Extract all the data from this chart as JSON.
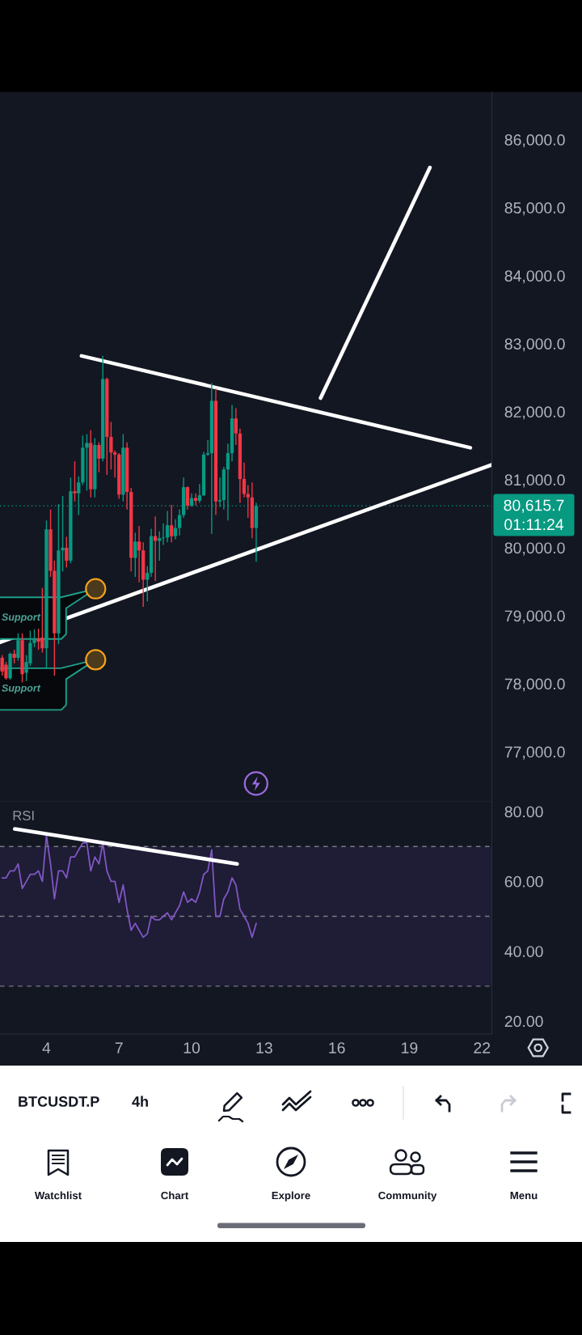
{
  "chart_data": [
    {
      "type": "candlestick",
      "x": [
        2.17,
        2.33,
        2.5,
        2.67,
        2.83,
        3.0,
        3.17,
        3.33,
        3.5,
        3.67,
        3.83,
        4.0,
        4.17,
        4.33,
        4.5,
        4.67,
        4.83,
        5.0,
        5.17,
        5.33,
        5.5,
        5.67,
        5.83,
        6.0,
        6.17,
        6.33,
        6.5,
        6.67,
        6.83,
        7.0,
        7.17,
        7.33,
        7.5,
        7.67,
        7.83,
        8.0,
        8.17,
        8.33,
        8.5,
        8.67,
        8.83,
        9.0,
        9.17,
        9.33,
        9.5,
        9.67,
        9.83,
        10.0,
        10.17,
        10.33,
        10.5,
        10.67,
        10.83,
        11.0,
        11.17,
        11.33,
        11.5,
        11.67,
        11.83,
        12.0,
        12.17,
        12.33,
        12.5,
        12.67
      ],
      "ohlc": [
        [
          78380,
          78420,
          78120,
          78180
        ],
        [
          78280,
          78320,
          78060,
          78080
        ],
        [
          78080,
          78460,
          78060,
          78440
        ],
        [
          78440,
          78500,
          78300,
          78380
        ],
        [
          78380,
          78740,
          78340,
          78640
        ],
        [
          78640,
          78740,
          78020,
          78140
        ],
        [
          78160,
          78420,
          78040,
          78320
        ],
        [
          78300,
          78780,
          78260,
          78600
        ],
        [
          78600,
          78800,
          78540,
          78660
        ],
        [
          78660,
          78810,
          78500,
          78620
        ],
        [
          78680,
          79410,
          78460,
          78520
        ],
        [
          78520,
          80400,
          78220,
          80270
        ],
        [
          80270,
          80560,
          79570,
          79660
        ],
        [
          79660,
          79810,
          78120,
          78740
        ],
        [
          78740,
          80640,
          78580,
          79960
        ],
        [
          79960,
          80760,
          79650,
          80000
        ],
        [
          80000,
          80160,
          79710,
          79810
        ],
        [
          79810,
          81030,
          79770,
          80830
        ],
        [
          80830,
          81270,
          80680,
          80800
        ],
        [
          80800,
          81050,
          80480,
          80960
        ],
        [
          80960,
          81650,
          80920,
          81470
        ],
        [
          81470,
          81670,
          80840,
          81540
        ],
        [
          81540,
          81730,
          80740,
          80860
        ],
        [
          80860,
          81610,
          80740,
          81510
        ],
        [
          81510,
          81550,
          81110,
          81310
        ],
        [
          81310,
          82820,
          81270,
          82480
        ],
        [
          82480,
          82500,
          81070,
          81630
        ],
        [
          81630,
          81850,
          81150,
          81400
        ],
        [
          81400,
          81430,
          81030,
          81370
        ],
        [
          81370,
          81390,
          80720,
          80780
        ],
        [
          80780,
          81670,
          80680,
          81470
        ],
        [
          81470,
          81550,
          80560,
          80820
        ],
        [
          80820,
          80880,
          79650,
          79850
        ],
        [
          79850,
          80220,
          79570,
          80090
        ],
        [
          80090,
          80320,
          79490,
          79960
        ],
        [
          79960,
          80080,
          79130,
          79530
        ],
        [
          79530,
          79730,
          79210,
          79630
        ],
        [
          79630,
          80280,
          79570,
          80170
        ],
        [
          80170,
          80460,
          79510,
          80100
        ],
        [
          80100,
          80240,
          79810,
          80140
        ],
        [
          80140,
          80360,
          80040,
          80150
        ],
        [
          80150,
          80540,
          80080,
          80330
        ],
        [
          80330,
          80630,
          80080,
          80170
        ],
        [
          80170,
          80420,
          80120,
          80290
        ],
        [
          80290,
          80560,
          80180,
          80480
        ],
        [
          80480,
          81030,
          80440,
          80890
        ],
        [
          80890,
          80900,
          80560,
          80620
        ],
        [
          80620,
          80800,
          80600,
          80730
        ],
        [
          80730,
          80800,
          80620,
          80690
        ],
        [
          80690,
          80940,
          80660,
          80770
        ],
        [
          80770,
          81410,
          80760,
          81370
        ],
        [
          81370,
          81580,
          81350,
          81390
        ],
        [
          81390,
          82420,
          80200,
          82160
        ],
        [
          82160,
          82340,
          80480,
          80680
        ],
        [
          80680,
          81030,
          80600,
          80700
        ],
        [
          80700,
          81190,
          80560,
          81150
        ],
        [
          81150,
          81530,
          80400,
          81390
        ],
        [
          81390,
          82100,
          81270,
          81900
        ],
        [
          81900,
          82050,
          81510,
          81680
        ],
        [
          81680,
          81750,
          80660,
          81010
        ],
        [
          81010,
          81250,
          80740,
          80790
        ],
        [
          80790,
          80920,
          80440,
          80740
        ],
        [
          80740,
          80960,
          80140,
          80290
        ],
        [
          80290,
          80660,
          79790,
          80615.7
        ]
      ],
      "colors": [
        "#f23645",
        "#f23645",
        "#089981",
        "#f23645",
        "#089981",
        "#f23645",
        "#089981",
        "#089981",
        "#089981",
        "#f23645",
        "#f23645",
        "#089981",
        "#f23645",
        "#f23645",
        "#089981",
        "#089981",
        "#f23645",
        "#089981",
        "#f23645",
        "#089981",
        "#089981",
        "#089981",
        "#f23645",
        "#089981",
        "#f23645",
        "#089981",
        "#f23645",
        "#f23645",
        "#f23645",
        "#f23645",
        "#089981",
        "#f23645",
        "#f23645",
        "#089981",
        "#f23645",
        "#f23645",
        "#089981",
        "#089981",
        "#f23645",
        "#089981",
        "#089981",
        "#089981",
        "#f23645",
        "#089981",
        "#089981",
        "#089981",
        "#f23645",
        "#089981",
        "#f23645",
        "#089981",
        "#089981",
        "#089981",
        "#089981",
        "#f23645",
        "#089981",
        "#089981",
        "#089981",
        "#089981",
        "#f23645",
        "#f23645",
        "#f23645",
        "#f23645",
        "#f23645",
        "#089981"
      ],
      "series": [
        {
          "type": "line",
          "color": "#ffffff",
          "x": [
            5.45,
            21.52
          ],
          "values": [
            82820,
            81470
          ]
        },
        {
          "type": "line",
          "color": "#ffffff",
          "x": [
            15.33,
            19.85
          ],
          "values": [
            82200,
            85590
          ]
        },
        {
          "type": "line",
          "color": "#ffffff",
          "x": [
            2.08,
            22.41
          ],
          "values": [
            78610,
            81220
          ]
        }
      ],
      "xlim": [
        2.08,
        22.41
      ],
      "ylim": [
        76270,
        86700
      ],
      "yticks": [
        {
          "value": 77000,
          "label": "77,000.0"
        },
        {
          "value": 78000,
          "label": "78,000.0"
        },
        {
          "value": 79000,
          "label": "79,000.0"
        },
        {
          "value": 80000,
          "label": "80,000.0"
        },
        {
          "value": 81000,
          "label": "81,000.0"
        },
        {
          "value": 82000,
          "label": "82,000.0"
        },
        {
          "value": 83000,
          "label": "83,000.0"
        },
        {
          "value": 84000,
          "label": "84,000.0"
        },
        {
          "value": 85000,
          "label": "85,000.0"
        },
        {
          "value": 86000,
          "label": "86,000.0"
        }
      ],
      "tick_labels": "y",
      "ref_lines": [
        {
          "axis": "y",
          "value": 80615.7,
          "label": "80,615.7",
          "color": "#089981",
          "line_style": "dotted"
        }
      ],
      "annotations": [
        "Support",
        "Support",
        "01:11:24"
      ]
    },
    {
      "type": "line",
      "title": "RSI",
      "x": [
        2.17,
        2.33,
        2.5,
        2.67,
        2.83,
        3.0,
        3.17,
        3.33,
        3.5,
        3.67,
        3.83,
        4.0,
        4.17,
        4.33,
        4.5,
        4.67,
        4.83,
        5.0,
        5.17,
        5.33,
        5.5,
        5.67,
        5.83,
        6.0,
        6.17,
        6.33,
        6.5,
        6.67,
        6.83,
        7.0,
        7.17,
        7.33,
        7.5,
        7.67,
        7.83,
        8.0,
        8.17,
        8.33,
        8.5,
        8.67,
        8.83,
        9.0,
        9.17,
        9.33,
        9.5,
        9.67,
        9.83,
        10.0,
        10.17,
        10.33,
        10.5,
        10.67,
        10.83,
        11.0,
        11.17,
        11.33,
        11.5,
        11.67,
        11.83,
        12.0,
        12.17,
        12.33,
        12.5,
        12.67
      ],
      "series": [
        {
          "color": "#7e57c2",
          "values": [
            61,
            61,
            63,
            63,
            65,
            58,
            60,
            62,
            62,
            63,
            60,
            73,
            65,
            55,
            63,
            63,
            61,
            67,
            67,
            69,
            71,
            71,
            63,
            67,
            65,
            71,
            63,
            60,
            60,
            54,
            59,
            52,
            46,
            48,
            46,
            44,
            45,
            50,
            49,
            49,
            50,
            51,
            49,
            51,
            53,
            57,
            54,
            55,
            54,
            57,
            62,
            63,
            69,
            50,
            50,
            55,
            57,
            61,
            59,
            52,
            50,
            48,
            44,
            48
          ]
        },
        {
          "type": "line",
          "color": "#ffffff",
          "x": [
            2.69,
            11.88
          ],
          "values": [
            75,
            65
          ]
        }
      ],
      "xlim": [
        2.08,
        22.41
      ],
      "xticks": [
        4,
        7,
        10,
        13,
        16,
        19,
        22
      ],
      "ylim": [
        16.3,
        82.9
      ],
      "yticks": [
        {
          "value": 20,
          "label": "20.00"
        },
        {
          "value": 40,
          "label": "40.00"
        },
        {
          "value": 60,
          "label": "60.00"
        },
        {
          "value": 80,
          "label": "80.00"
        }
      ],
      "bands": [
        {
          "axis": "y",
          "from": 30,
          "to": 70,
          "color": "#1f1c35"
        }
      ],
      "ref_lines": [
        {
          "axis": "y",
          "value": 70,
          "color": "#787b86",
          "line_style": "dashed"
        },
        {
          "axis": "y",
          "value": 50,
          "color": "#787b86",
          "line_style": "dashed"
        },
        {
          "axis": "y",
          "value": 30,
          "color": "#787b86",
          "line_style": "dashed"
        }
      ]
    },
    {
      "type": "other",
      "annotations": [
        "BTCUSDT.P",
        "4h",
        "Watchlist",
        "Chart",
        "Explore",
        "Community",
        "Menu"
      ]
    }
  ]
}
